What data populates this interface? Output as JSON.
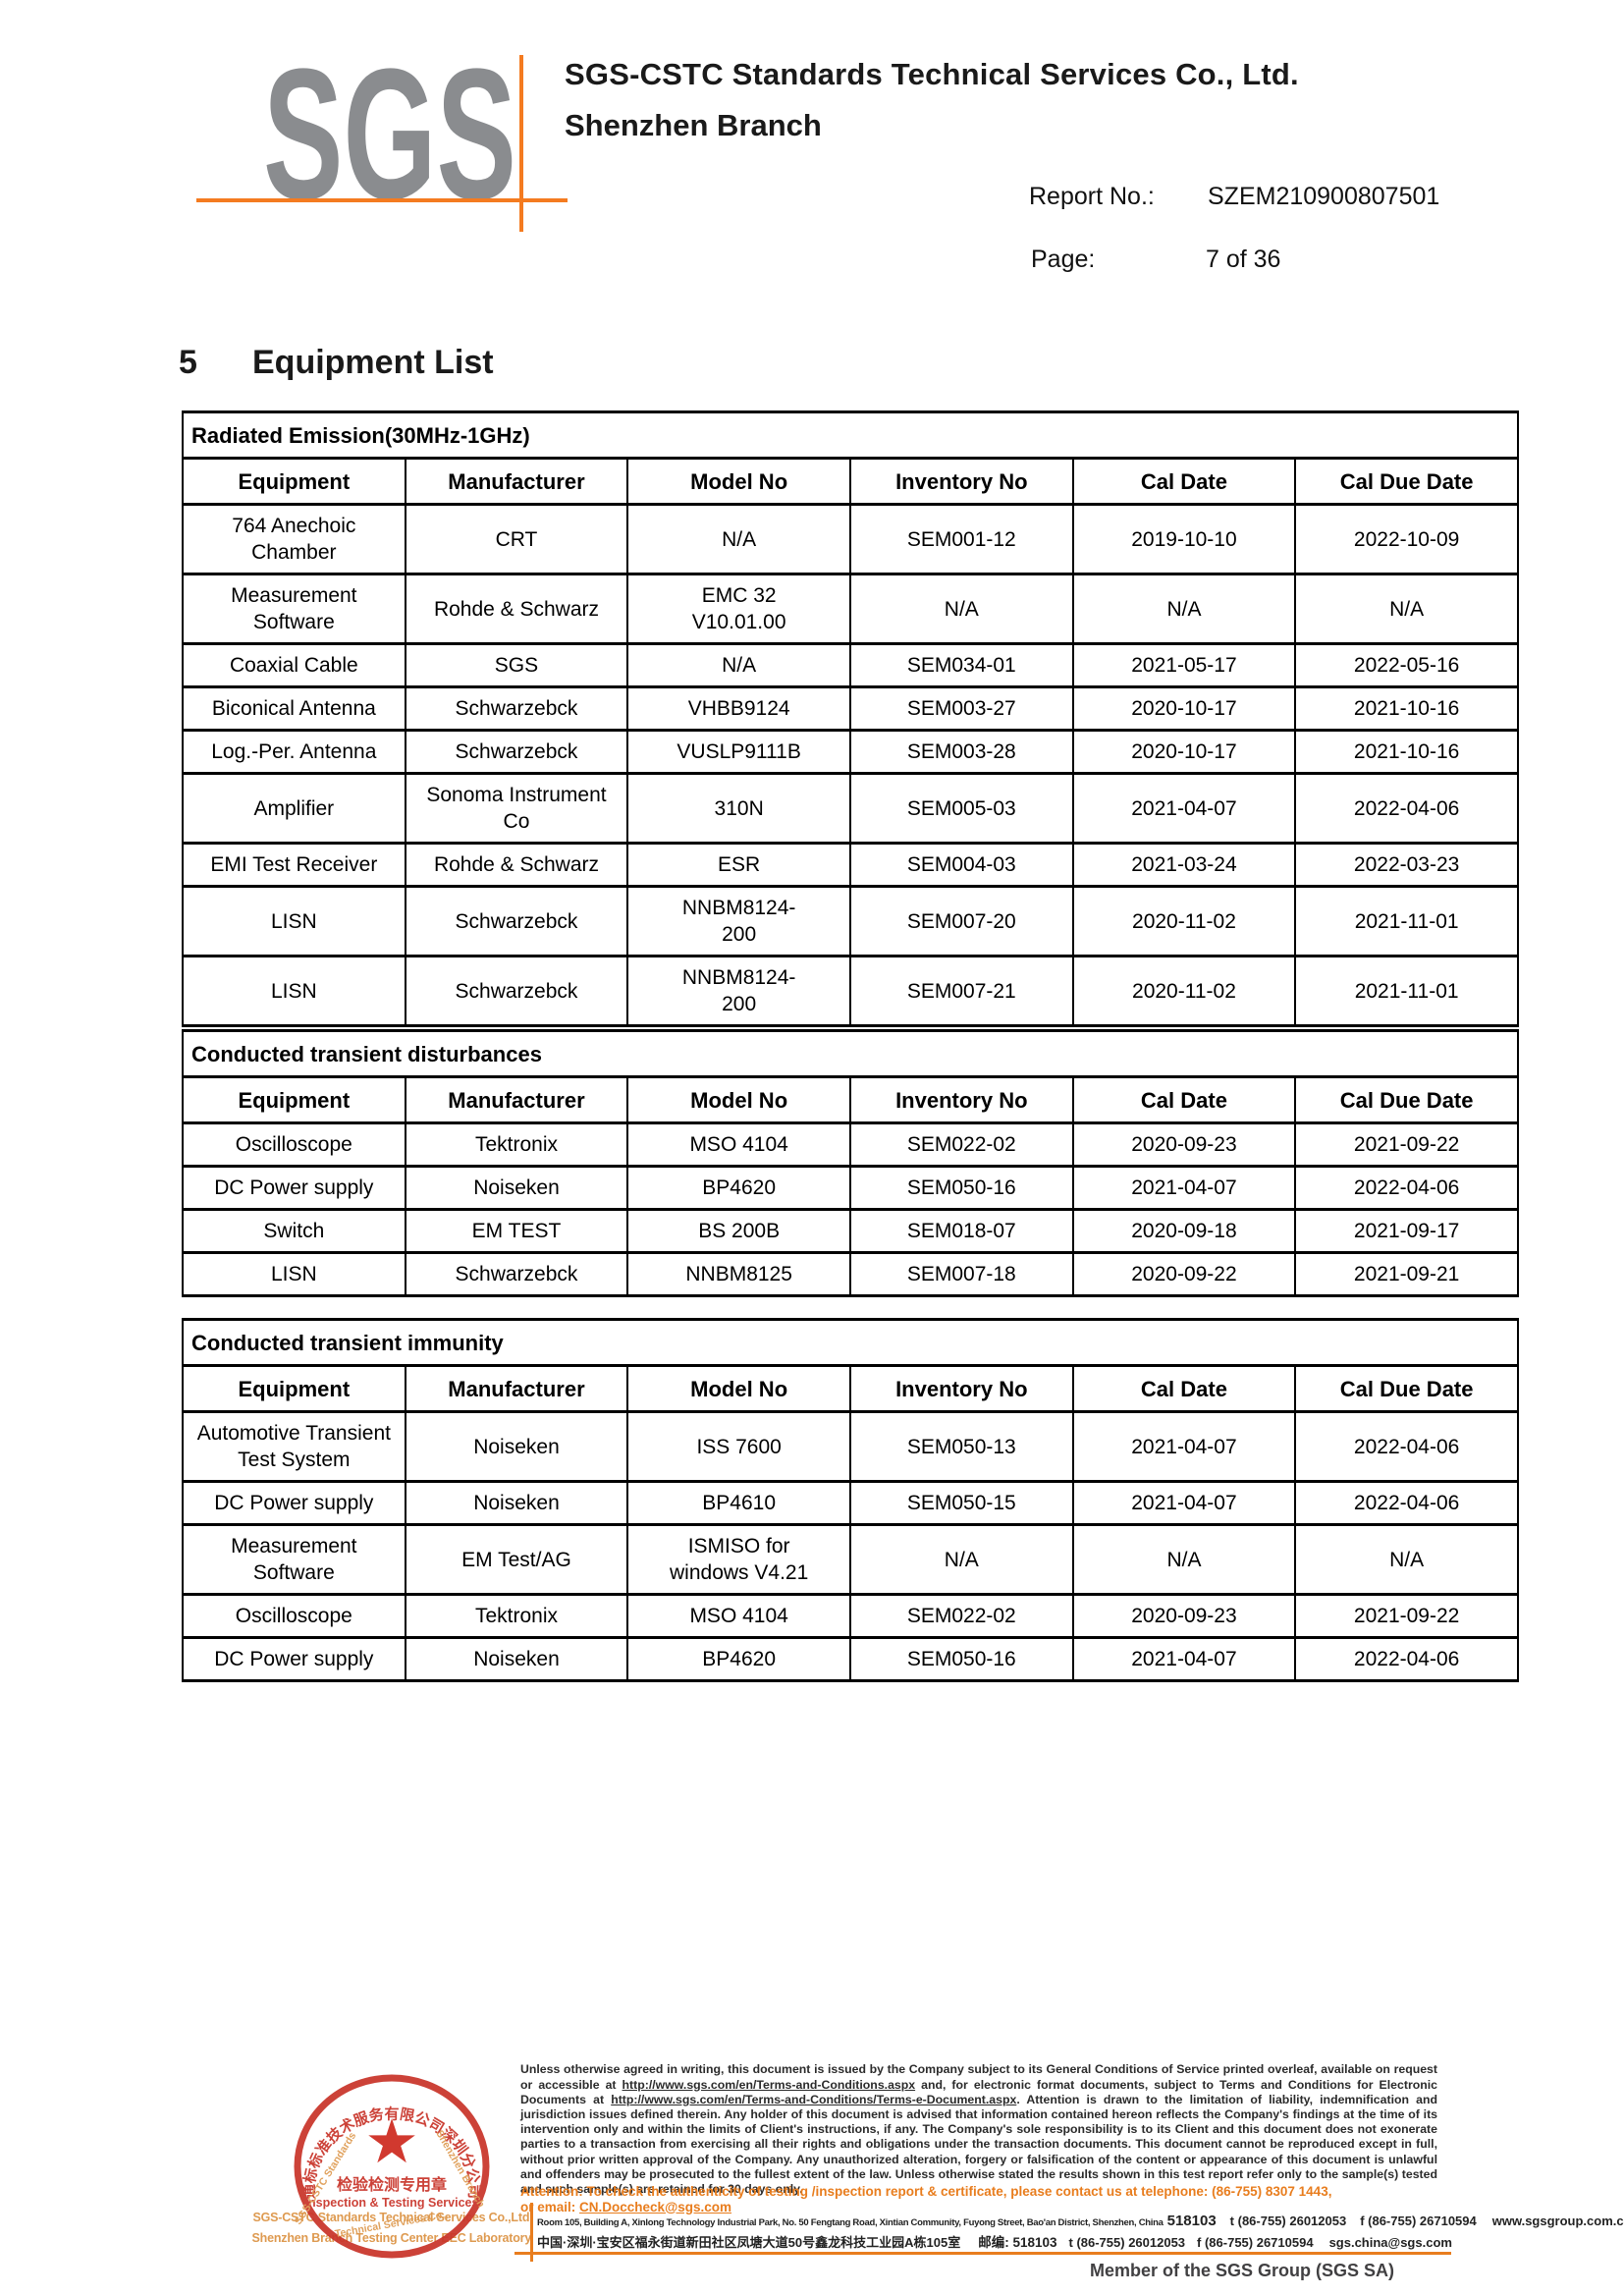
{
  "header": {
    "logo_text": "SGS",
    "company_line1": "SGS-CSTC Standards Technical Services Co., Ltd.",
    "company_line2": "Shenzhen Branch",
    "report_label": "Report No.:",
    "report_value": "SZEM210900807501",
    "page_label": "Page:",
    "page_value": "7 of 36"
  },
  "section": {
    "number": "5",
    "title": "Equipment List"
  },
  "tables": [
    {
      "title": "Radiated Emission(30MHz-1GHz)",
      "columns": [
        "Equipment",
        "Manufacturer",
        "Model No",
        "Inventory No",
        "Cal Date",
        "Cal Due Date"
      ],
      "rows": [
        [
          "764 Anechoic Chamber",
          "CRT",
          "N/A",
          "SEM001-12",
          "2019-10-10",
          "2022-10-09"
        ],
        [
          "Measurement Software",
          "Rohde & Schwarz",
          "EMC 32\nV10.01.00",
          "N/A",
          "N/A",
          "N/A"
        ],
        [
          "Coaxial Cable",
          "SGS",
          "N/A",
          "SEM034-01",
          "2021-05-17",
          "2022-05-16"
        ],
        [
          "Biconical Antenna",
          "Schwarzebck",
          "VHBB9124",
          "SEM003-27",
          "2020-10-17",
          "2021-10-16"
        ],
        [
          "Log.-Per. Antenna",
          "Schwarzebck",
          "VUSLP9111B",
          "SEM003-28",
          "2020-10-17",
          "2021-10-16"
        ],
        [
          "Amplifier",
          "Sonoma Instrument\nCo",
          "310N",
          "SEM005-03",
          "2021-04-07",
          "2022-04-06"
        ],
        [
          "EMI Test Receiver",
          "Rohde & Schwarz",
          "ESR",
          "SEM004-03",
          "2021-03-24",
          "2022-03-23"
        ],
        [
          "LISN",
          "Schwarzebck",
          "NNBM8124-\n200",
          "SEM007-20",
          "2020-11-02",
          "2021-11-01"
        ],
        [
          "LISN",
          "Schwarzebck",
          "NNBM8124-\n200",
          "SEM007-21",
          "2020-11-02",
          "2021-11-01"
        ]
      ]
    },
    {
      "title": "Conducted transient disturbances",
      "columns": [
        "Equipment",
        "Manufacturer",
        "Model No",
        "Inventory No",
        "Cal Date",
        "Cal Due Date"
      ],
      "rows": [
        [
          "Oscilloscope",
          "Tektronix",
          "MSO 4104",
          "SEM022-02",
          "2020-09-23",
          "2021-09-22"
        ],
        [
          "DC Power supply",
          "Noiseken",
          "BP4620",
          "SEM050-16",
          "2021-04-07",
          "2022-04-06"
        ],
        [
          "Switch",
          "EM TEST",
          "BS 200B",
          "SEM018-07",
          "2020-09-18",
          "2021-09-17"
        ],
        [
          "LISN",
          "Schwarzebck",
          "NNBM8125",
          "SEM007-18",
          "2020-09-22",
          "2021-09-21"
        ]
      ]
    },
    {
      "title": "Conducted transient immunity",
      "columns": [
        "Equipment",
        "Manufacturer",
        "Model No",
        "Inventory No",
        "Cal Date",
        "Cal Due Date"
      ],
      "rows": [
        [
          "Automotive Transient\nTest System",
          "Noiseken",
          "ISS 7600",
          "SEM050-13",
          "2021-04-07",
          "2022-04-06"
        ],
        [
          "DC Power supply",
          "Noiseken",
          "BP4610",
          "SEM050-15",
          "2021-04-07",
          "2022-04-06"
        ],
        [
          "Measurement Software",
          "EM Test/AG",
          "ISMISO for\nwindows V4.21",
          "N/A",
          "N/A",
          "N/A"
        ],
        [
          "Oscilloscope",
          "Tektronix",
          "MSO 4104",
          "SEM022-02",
          "2020-09-23",
          "2021-09-22"
        ],
        [
          "DC Power supply",
          "Noiseken",
          "BP4620",
          "SEM050-16",
          "2021-04-07",
          "2022-04-06"
        ]
      ]
    }
  ],
  "footer": {
    "disclaimer": {
      "part1": "Unless otherwise agreed in writing, this document is issued by the Company subject to its General Conditions of Service printed overleaf, available on request or accessible at ",
      "url1": "http://www.sgs.com/en/Terms-and-Conditions.aspx",
      "part2": " and, for electronic format documents, subject to Terms and Conditions for Electronic Documents at ",
      "url2": "http://www.sgs.com/en/Terms-and-Conditions/Terms-e-Document.aspx",
      "part3": ". Attention is drawn to the limitation of liability, indemnification and jurisdiction issues defined therein. Any holder of this document is advised that information contained hereon reflects the Company's findings at the time of its intervention only and within the limits of Client's instructions, if any. The Company's sole responsibility is to its Client and this document does not exonerate parties to a transaction from exercising all their rights and obligations under the transaction documents. This document cannot be reproduced except in full, without prior written approval of the Company. Any unauthorized alteration, forgery or falsification of the content or appearance of this document is unlawful and offenders may be prosecuted to the fullest extent of the law. Unless otherwise stated the results shown in this test report refer only to the sample(s) tested and such sample(s) are retained for 30 days only."
    },
    "attention": {
      "line1": "Attention: To check the authenticity of testing /inspection report & certificate, please contact us at telephone: (86-755) 8307 1443,",
      "email_label": "or email: ",
      "email": "CN.Doccheck@sgs.com"
    },
    "address1": {
      "street": "Room 105, Building A, Xinlong Technology Industrial Park, No. 50 Fengtang Road, Xintian Community, Fuyong Street, Bao'an District, Shenzhen, China",
      "zip": "518103",
      "tel": "t (86-755) 26012053",
      "fax": "f (86-755) 26710594",
      "web": "www.sgsgroup.com.cn"
    },
    "address2": {
      "street_cn": "中国·深圳·宝安区福永街道新田社区凤塘大道50号鑫龙科技工业园A栋105室",
      "zip_label": "邮编: 518103",
      "tel": "t (86-755) 26012053",
      "fax": "f (86-755) 26710594",
      "email": "sgs.china@sgs.com"
    },
    "left_company_line1": "SGS-CSTC Standards Technical Services Co.,Ltd.",
    "left_company_line2": "Shenzhen Branch Testing Center EEC Laboratory.",
    "member_line": "Member of the SGS Group (SGS SA)",
    "stamp": {
      "ring_text": "通标标准技术服务有限公司深圳分公司",
      "star_icon": "★",
      "line1": "检验检测专用章",
      "line2": "Inspection & Testing Services",
      "diag1": "SGS-CSTC Standards",
      "diag2": "Technical Services Co.,",
      "diag3": "Shenzhen Branch"
    }
  },
  "colors": {
    "brand_orange": "#F47B20",
    "footer_orange": "#E87D1E",
    "stamp_red": "#C9342A",
    "logo_gray": "#8A8C8F",
    "stamp_tan": "#DE9A50"
  }
}
